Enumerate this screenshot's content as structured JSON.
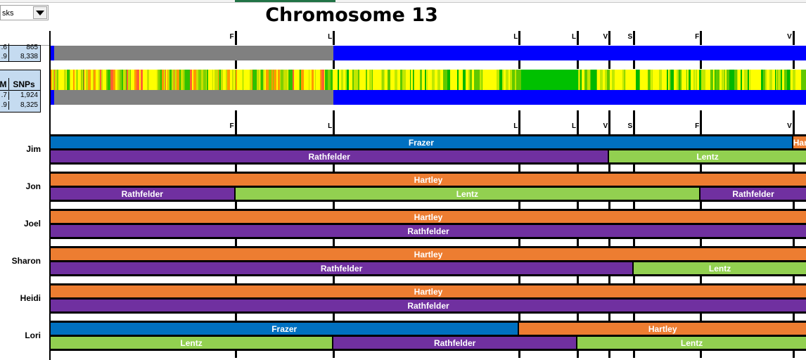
{
  "toolbar": {
    "combo_value": "sks"
  },
  "side_table_1": {
    "rows": [
      [
        ".6",
        "865"
      ],
      [
        ".9",
        "8,338"
      ]
    ]
  },
  "side_table_2": {
    "header": [
      "M",
      "SNPs"
    ],
    "rows": [
      [
        ".7",
        "1,924"
      ],
      [
        ".9",
        "8,325"
      ]
    ]
  },
  "chart_data": {
    "type": "table",
    "title": "Chromosome 13",
    "x_range": [
      0,
      1
    ],
    "ticks": [
      {
        "label": "F",
        "pos": 0.2445
      },
      {
        "label": "L",
        "pos": 0.3745
      },
      {
        "label": "L",
        "pos": 0.6205
      },
      {
        "label": "L",
        "pos": 0.6975
      },
      {
        "label": "V",
        "pos": 0.7395
      },
      {
        "label": "S",
        "pos": 0.772
      },
      {
        "label": "F",
        "pos": 0.8605
      },
      {
        "label": "V",
        "pos": 0.983
      }
    ],
    "colors": {
      "Frazer": "#0070c0",
      "Rathfelder": "#7030a0",
      "Lentz": "#92d050",
      "Hartley": "#ed7d31",
      "match": "#0000ff",
      "nomatch": "#808080"
    },
    "match_bars": [
      {
        "segments": [
          {
            "from": 0,
            "to": 0.005,
            "type": "match"
          },
          {
            "from": 0.005,
            "to": 0.3745,
            "type": "nomatch"
          },
          {
            "from": 0.3745,
            "to": 1,
            "type": "match"
          }
        ]
      },
      {
        "segments": [
          {
            "from": 0,
            "to": 0.005,
            "type": "match"
          },
          {
            "from": 0.005,
            "to": 0.3745,
            "type": "nomatch"
          },
          {
            "from": 0.3745,
            "to": 1,
            "type": "match"
          }
        ]
      }
    ],
    "people": [
      {
        "name": "Jim",
        "paternal": [
          {
            "from": 0,
            "to": 0.983,
            "label": "Frazer"
          },
          {
            "from": 0.983,
            "to": 1,
            "label": "Hartley"
          }
        ],
        "maternal": [
          {
            "from": 0,
            "to": 0.7395,
            "label": "Rathfelder"
          },
          {
            "from": 0.7395,
            "to": 1,
            "label": "Lentz"
          }
        ]
      },
      {
        "name": "Jon",
        "paternal": [
          {
            "from": 0,
            "to": 1,
            "label": "Hartley"
          }
        ],
        "maternal": [
          {
            "from": 0,
            "to": 0.2445,
            "label": "Rathfelder"
          },
          {
            "from": 0.2445,
            "to": 0.8605,
            "label": "Lentz"
          },
          {
            "from": 0.8605,
            "to": 1,
            "label": "Rathfelder"
          }
        ]
      },
      {
        "name": "Joel",
        "paternal": [
          {
            "from": 0,
            "to": 1,
            "label": "Hartley"
          }
        ],
        "maternal": [
          {
            "from": 0,
            "to": 1,
            "label": "Rathfelder"
          }
        ]
      },
      {
        "name": "Sharon",
        "paternal": [
          {
            "from": 0,
            "to": 1,
            "label": "Hartley"
          }
        ],
        "maternal": [
          {
            "from": 0,
            "to": 0.772,
            "label": "Rathfelder"
          },
          {
            "from": 0.772,
            "to": 1,
            "label": "Lentz"
          }
        ]
      },
      {
        "name": "Heidi",
        "paternal": [
          {
            "from": 0,
            "to": 1,
            "label": "Hartley"
          }
        ],
        "maternal": [
          {
            "from": 0,
            "to": 1,
            "label": "Rathfelder"
          }
        ]
      },
      {
        "name": "Lori",
        "paternal": [
          {
            "from": 0,
            "to": 0.6205,
            "label": "Frazer"
          },
          {
            "from": 0.6205,
            "to": 1,
            "label": "Hartley"
          }
        ],
        "maternal": [
          {
            "from": 0,
            "to": 0.3745,
            "label": "Lentz"
          },
          {
            "from": 0.3745,
            "to": 0.6975,
            "label": "Rathfelder"
          },
          {
            "from": 0.6975,
            "to": 1,
            "label": "Lentz"
          }
        ]
      }
    ]
  }
}
